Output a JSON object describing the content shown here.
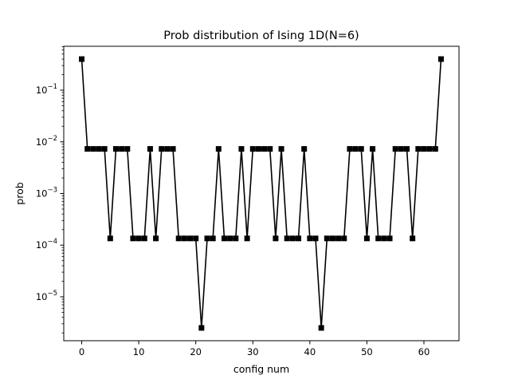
{
  "chart_data": {
    "type": "line",
    "title": "Prob distribution of Ising 1D(N=6)",
    "xlabel": "config num",
    "ylabel": "prob",
    "xlim": [
      -3.15,
      66.15
    ],
    "ylim_log10": [
      -5.85,
      -0.15
    ],
    "yscale": "log",
    "grid": false,
    "legend": "none",
    "marker": "square",
    "line_color": "#000000",
    "x_ticks": [
      0,
      10,
      20,
      30,
      40,
      50,
      60
    ],
    "y_ticks": [
      {
        "exp": -5,
        "label": "10^-5"
      },
      {
        "exp": -4,
        "label": "10^-4"
      },
      {
        "exp": -3,
        "label": "10^-3"
      },
      {
        "exp": -2,
        "label": "10^-2"
      },
      {
        "exp": -1,
        "label": "10^-1"
      }
    ],
    "x": [
      0,
      1,
      2,
      3,
      4,
      5,
      6,
      7,
      8,
      9,
      10,
      11,
      12,
      13,
      14,
      15,
      16,
      17,
      18,
      19,
      20,
      21,
      22,
      23,
      24,
      25,
      26,
      27,
      28,
      29,
      30,
      31,
      32,
      33,
      34,
      35,
      36,
      37,
      38,
      39,
      40,
      41,
      42,
      43,
      44,
      45,
      46,
      47,
      48,
      49,
      50,
      51,
      52,
      53,
      54,
      55,
      56,
      57,
      58,
      59,
      60,
      61,
      62,
      63
    ],
    "y": [
      0.4,
      0.0073,
      0.0073,
      0.0073,
      0.0073,
      0.000135,
      0.0073,
      0.0073,
      0.0073,
      0.000135,
      0.000135,
      0.000135,
      0.0073,
      0.000135,
      0.0073,
      0.0073,
      0.0073,
      0.000135,
      0.000135,
      0.000135,
      0.000135,
      2.5e-06,
      0.000135,
      0.000135,
      0.0073,
      0.000135,
      0.000135,
      0.000135,
      0.0073,
      0.000135,
      0.0073,
      0.0073,
      0.0073,
      0.0073,
      0.000135,
      0.0073,
      0.000135,
      0.000135,
      0.000135,
      0.0073,
      0.000135,
      0.000135,
      2.5e-06,
      0.000135,
      0.000135,
      0.000135,
      0.000135,
      0.0073,
      0.0073,
      0.0073,
      0.000135,
      0.0073,
      0.000135,
      0.000135,
      0.000135,
      0.0073,
      0.0073,
      0.0073,
      0.000135,
      0.0073,
      0.0073,
      0.0073,
      0.0073,
      0.4
    ]
  }
}
